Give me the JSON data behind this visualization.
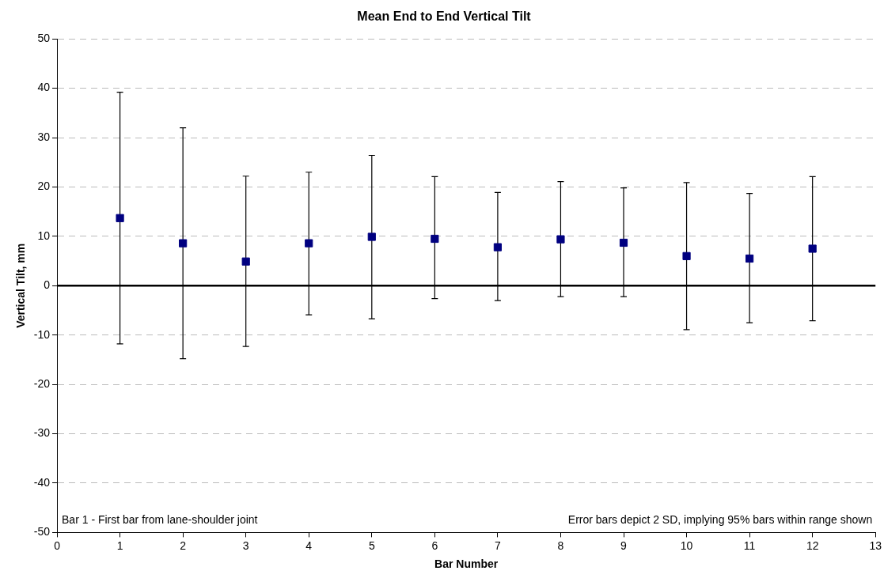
{
  "chart_data": {
    "type": "scatter",
    "title": "Mean End to End Vertical Tilt",
    "xlabel": "Bar Number",
    "ylabel": "Vertical Tilt, mm",
    "x": [
      1,
      2,
      3,
      4,
      5,
      6,
      7,
      8,
      9,
      10,
      11,
      12
    ],
    "values": [
      13.7,
      8.6,
      4.9,
      8.6,
      9.9,
      9.5,
      7.8,
      9.4,
      8.7,
      6.0,
      5.5,
      7.5
    ],
    "errors": [
      [
        -11.8,
        39.2
      ],
      [
        -14.8,
        32.0
      ],
      [
        -12.3,
        22.2
      ],
      [
        -5.9,
        23.0
      ],
      [
        -6.7,
        26.4
      ],
      [
        -2.6,
        22.1
      ],
      [
        -3.0,
        18.9
      ],
      [
        -2.2,
        21.1
      ],
      [
        -2.2,
        19.8
      ],
      [
        -8.9,
        20.9
      ],
      [
        -7.5,
        18.7
      ],
      [
        -7.1,
        22.1
      ]
    ],
    "color": "#000080",
    "marker": "square",
    "xlim": [
      0,
      13
    ],
    "xticks": [
      0,
      1,
      2,
      3,
      4,
      5,
      6,
      7,
      8,
      9,
      10,
      11,
      12,
      13
    ],
    "ylim": [
      -50,
      50
    ],
    "yticks": [
      -50,
      -40,
      -30,
      -20,
      -10,
      0,
      10,
      20,
      30,
      40,
      50
    ],
    "grid": "y",
    "legend": false,
    "ref_lines": [
      {
        "axis": "y",
        "value": 0,
        "color": "#000000"
      }
    ],
    "annotations": [
      "Bar 1 - First bar from lane-shoulder joint",
      "Error bars depict 2 SD, implying 95% bars within range shown"
    ]
  }
}
